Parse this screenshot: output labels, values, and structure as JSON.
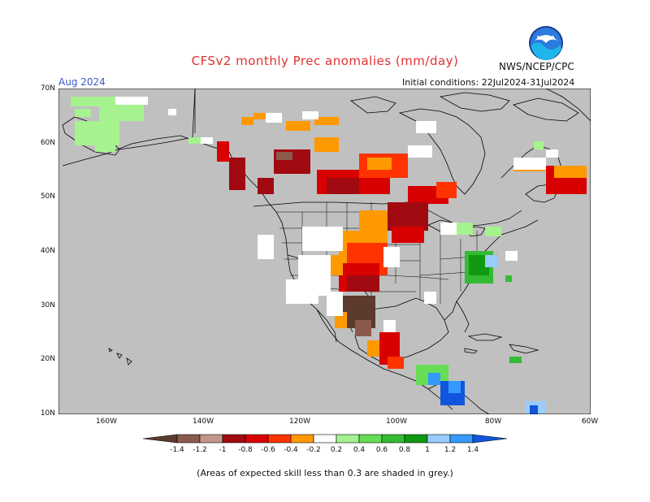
{
  "header": {
    "title": "CFSv2 monthly Prec anomalies (mm/day)",
    "agency": "NWS/NCEP/CPC",
    "lead_month": "Aug 2024",
    "initial_conditions": "Initial conditions: 22Jul2024-31Jul2024",
    "logo_text": "NOAA"
  },
  "axes": {
    "lat_labels": [
      "70N",
      "60N",
      "50N",
      "40N",
      "30N",
      "20N",
      "10N"
    ],
    "lon_labels": [
      "160W",
      "140W",
      "120W",
      "100W",
      "80W",
      "60W"
    ]
  },
  "legend": {
    "tick_labels": [
      "-1.4",
      "-1.2",
      "-1",
      "-0.8",
      "-0.6",
      "-0.4",
      "-0.2",
      "0.2",
      "0.4",
      "0.6",
      "0.8",
      "1",
      "1.2",
      "1.4"
    ],
    "colors": [
      "#5c3a2e",
      "#8c5a4c",
      "#c4968a",
      "#a00a10",
      "#d80000",
      "#ff3300",
      "#ff9900",
      "#ffffff",
      "#a6f28f",
      "#66dd55",
      "#33bb33",
      "#119911",
      "#99ccff",
      "#3399ff",
      "#1155dd"
    ],
    "no_skill_color": "#c0c0c0"
  },
  "footnote": "(Areas of expected skill less than 0.3 are shaded in grey.)"
}
